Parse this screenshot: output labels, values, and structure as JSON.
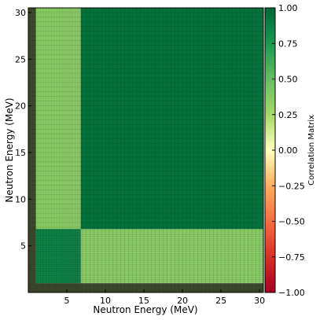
{
  "chart_data": {
    "type": "heatmap",
    "title": "",
    "xlabel": "Neutron Energy (MeV)",
    "ylabel": "Neutron Energy (MeV)",
    "colorbar_label": "Correlation Matrix",
    "colormap": "RdYlGn",
    "xlim": [
      0,
      30.5
    ],
    "ylim": [
      0,
      30.5
    ],
    "clim": [
      -1.0,
      1.0
    ],
    "x_ticks": [
      5,
      10,
      15,
      20,
      25,
      30
    ],
    "y_ticks": [
      5,
      10,
      15,
      20,
      25,
      30
    ],
    "x_tick_labels": [
      "5",
      "10",
      "15",
      "20",
      "25",
      "30"
    ],
    "y_tick_labels": [
      "5",
      "10",
      "15",
      "20",
      "25",
      "30"
    ],
    "colorbar_ticks": [
      1.0,
      0.75,
      0.5,
      0.25,
      0.0,
      -0.25,
      -0.5,
      -0.75,
      -1.0
    ],
    "colorbar_tick_labels": [
      "1.00",
      "0.75",
      "0.50",
      "0.25",
      "0.00",
      "−0.25",
      "−0.50",
      "−0.75",
      "−1.00"
    ],
    "regions": [
      {
        "x": [
          0,
          1.0
        ],
        "y": [
          0,
          30.5
        ],
        "value": 0.15,
        "note": "dark-shaded edge band"
      },
      {
        "x": [
          0,
          30.5
        ],
        "y": [
          0,
          1.0
        ],
        "value": 0.15,
        "note": "dark-shaded edge band"
      },
      {
        "x": [
          1.0,
          6.8
        ],
        "y": [
          6.8,
          30.5
        ],
        "value": 0.35
      },
      {
        "x": [
          6.8,
          30.5
        ],
        "y": [
          1.0,
          6.8
        ],
        "value": 0.35
      },
      {
        "x": [
          1.0,
          6.8
        ],
        "y": [
          1.0,
          6.8
        ],
        "value": 0.85
      },
      {
        "x": [
          6.8,
          30.5
        ],
        "y": [
          6.8,
          30.5
        ],
        "value": 0.95
      }
    ]
  }
}
